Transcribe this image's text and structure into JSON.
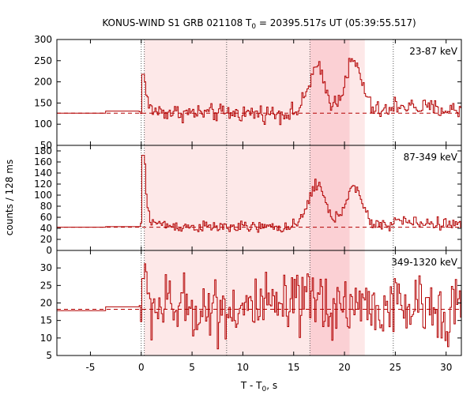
{
  "chart_data": {
    "type": "line",
    "title_prefix": "KONUS-WIND S1 GRB 021108 T",
    "title_sub": "0",
    "title_suffix": " = 20395.517s UT (05:39:55.517)",
    "xlabel_prefix": "T - T",
    "xlabel_sub": "0",
    "xlabel_suffix": ", s",
    "ylabel": "counts / 128 ms",
    "xlim": [
      -8.3,
      31.5
    ],
    "xticks": [
      -5,
      0,
      5,
      10,
      15,
      20,
      25,
      30
    ],
    "xtick_labels": [
      "-5",
      "0",
      "5",
      "10",
      "15",
      "20",
      "25",
      "30"
    ],
    "line_color": "#b30000",
    "shade_light": "#fde8e8",
    "shade_dark": "#fbd0d4",
    "shaded_intervals": [
      {
        "start": 0.3,
        "end": 22.0,
        "tone": "light"
      },
      {
        "start": 16.6,
        "end": 20.5,
        "tone": "dark"
      }
    ],
    "vertical_markers": [
      0.0,
      0.3,
      8.4,
      16.6,
      24.8
    ],
    "panels": [
      {
        "band": "23-87 keV",
        "ylim": [
          50,
          300
        ],
        "yticks": [
          50,
          100,
          150,
          200,
          250,
          300
        ],
        "ytick_labels": [
          "50",
          "100",
          "150",
          "200",
          "250",
          "300"
        ],
        "background": 126,
        "pre_trigger": [
          [
            -8.3,
            126
          ],
          [
            -3.5,
            126
          ],
          [
            -3.5,
            131
          ],
          [
            -0.2,
            131
          ]
        ],
        "base": 126,
        "amplitude": 10,
        "spike_peak": 218,
        "pulse1_peak": 230,
        "pulse2_peak": 245,
        "tail": [
          [
            24.8,
            147
          ],
          [
            27.0,
            140
          ],
          [
            31.5,
            132
          ]
        ]
      },
      {
        "band": "87-349 keV",
        "ylim": [
          0,
          190
        ],
        "yticks": [
          0,
          20,
          40,
          60,
          80,
          100,
          120,
          140,
          160,
          180
        ],
        "ytick_labels": [
          "0",
          "20",
          "40",
          "60",
          "80",
          "100",
          "120",
          "140",
          "160",
          "180"
        ],
        "background": 42,
        "pre_trigger": [
          [
            -8.3,
            42
          ],
          [
            -3.5,
            42
          ],
          [
            -3.5,
            43
          ],
          [
            -0.2,
            43
          ]
        ],
        "base": 42,
        "amplitude": 5,
        "spike_peak": 172,
        "pulse1_peak": 120,
        "pulse2_peak": 112,
        "tail": [
          [
            24.8,
            55
          ],
          [
            27.0,
            50
          ],
          [
            31.5,
            47
          ]
        ]
      },
      {
        "band": "349-1320 keV",
        "ylim": [
          5,
          35
        ],
        "yticks": [
          5,
          10,
          15,
          20,
          25,
          30
        ],
        "ytick_labels": [
          "5",
          "10",
          "15",
          "20",
          "25",
          "30"
        ],
        "background": 18.2,
        "pre_trigger": [
          [
            -8.3,
            17.8
          ],
          [
            -3.5,
            17.8
          ],
          [
            -3.5,
            18.9
          ],
          [
            -0.2,
            18.9
          ]
        ],
        "base": 18.5,
        "amplitude": 4.5,
        "spike_peak": 27,
        "pulse1_peak": 21,
        "pulse2_peak": 20,
        "tail": [
          [
            24.8,
            18.5
          ],
          [
            31.5,
            18.5
          ]
        ]
      }
    ]
  }
}
